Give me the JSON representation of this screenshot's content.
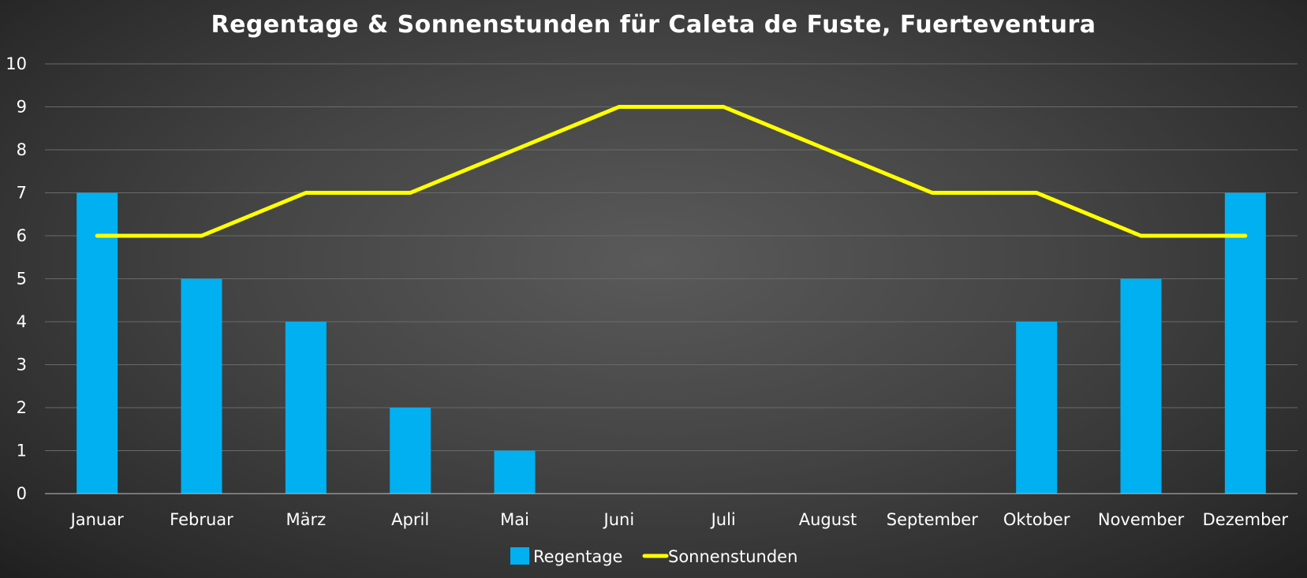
{
  "chart_data": {
    "type": "bar",
    "title": "Regentage & Sonnenstunden für Caleta de Fuste, Fuerteventura",
    "xlabel": "",
    "ylabel": "",
    "ylim": [
      0,
      10
    ],
    "yticks": [
      0,
      1,
      2,
      3,
      4,
      5,
      6,
      7,
      8,
      9,
      10
    ],
    "grid": true,
    "legend_position": "bottom",
    "categories": [
      "Januar",
      "Februar",
      "März",
      "April",
      "Mai",
      "Juni",
      "Juli",
      "August",
      "September",
      "Oktober",
      "November",
      "Dezember"
    ],
    "series": [
      {
        "name": "Regentage",
        "type": "bar",
        "color": "#00b0f0",
        "values": [
          7,
          5,
          4,
          2,
          1,
          0,
          0,
          0,
          0,
          4,
          5,
          7
        ]
      },
      {
        "name": "Sonnenstunden",
        "type": "line",
        "color": "#ffff00",
        "values": [
          6,
          6,
          7,
          7,
          8,
          9,
          9,
          8,
          7,
          7,
          6,
          6
        ]
      }
    ]
  }
}
